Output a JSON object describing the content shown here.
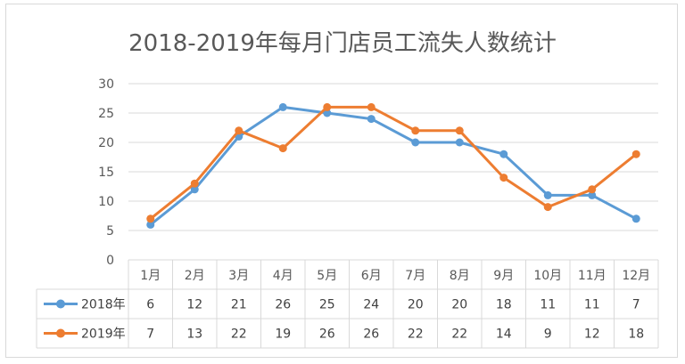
{
  "chart_data": {
    "type": "line",
    "title": "2018-2019年每月门店员工流失人数统计",
    "categories": [
      "1月",
      "2月",
      "3月",
      "4月",
      "5月",
      "6月",
      "7月",
      "8月",
      "9月",
      "10月",
      "11月",
      "12月"
    ],
    "series": [
      {
        "name": "2018年",
        "color": "#5b9bd5",
        "values": [
          6,
          12,
          21,
          26,
          25,
          24,
          20,
          20,
          18,
          11,
          11,
          7
        ]
      },
      {
        "name": "2019年",
        "color": "#ed7d31",
        "values": [
          7,
          13,
          22,
          19,
          26,
          26,
          22,
          22,
          14,
          9,
          12,
          18
        ]
      }
    ],
    "ylim": [
      0,
      30
    ],
    "yticks": [
      "0",
      "5",
      "10",
      "15",
      "20",
      "25",
      "30"
    ],
    "grid": true,
    "legend": "data-table"
  }
}
